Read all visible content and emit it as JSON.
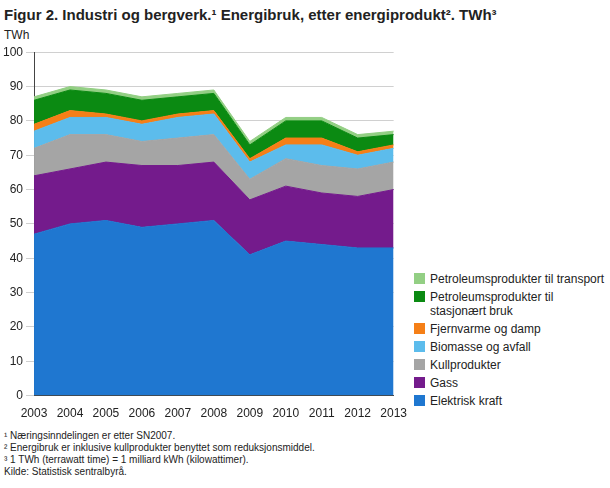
{
  "chart_data": {
    "type": "area",
    "stacked": true,
    "title": "Figur 2. Industri og bergverk.¹ Energibruk, etter energiprodukt². TWh³",
    "y_label": "TWh",
    "notes": [
      "¹ Næringsinndelingen er etter SN2007.",
      "² Energibruk er inklusive kullprodukter benyttet som reduksjonsmiddel.",
      "³ 1 TWh (terrawatt time) = 1 milliard kWh (kilowattimer).",
      "Kilde: Statistisk sentralbyrå."
    ],
    "categories": [
      "2003",
      "2004",
      "2005",
      "2006",
      "2007",
      "2008",
      "2009",
      "2010",
      "2011",
      "2012",
      "2013"
    ],
    "series": [
      {
        "name": "Elektrisk kraft",
        "color": "#1f77d0",
        "values": [
          47,
          50,
          51,
          49,
          50,
          51,
          41,
          45,
          44,
          43,
          43
        ]
      },
      {
        "name": "Gass",
        "color": "#741b8c",
        "values": [
          17,
          16,
          17,
          18,
          17,
          17,
          16,
          16,
          15,
          15,
          17
        ]
      },
      {
        "name": "Kullprodukter",
        "color": "#a5a5a5",
        "values": [
          8,
          10,
          8,
          7,
          8,
          8,
          6,
          8,
          8,
          8,
          8
        ]
      },
      {
        "name": "Biomasse og avfall",
        "color": "#5cbcec",
        "values": [
          5,
          5,
          5,
          5,
          6,
          6,
          5,
          4,
          6,
          4,
          4
        ]
      },
      {
        "name": "Fjernvarme og damp",
        "color": "#f57f17",
        "values": [
          2,
          2,
          1,
          1,
          1,
          1,
          1,
          2,
          2,
          1,
          1
        ]
      },
      {
        "name": "Petroleumsprodukter til stasjonært bruk",
        "color": "#0b8a12",
        "values": [
          7,
          6,
          6,
          6,
          5,
          5,
          4,
          5,
          5,
          4,
          3
        ]
      },
      {
        "name": "Petroleumsprodukter til transport",
        "color": "#93cf84",
        "values": [
          1,
          1,
          1,
          1,
          1,
          1,
          1,
          1,
          1,
          1,
          1
        ]
      }
    ],
    "ylim": [
      0,
      100
    ],
    "yticks": [
      0,
      10,
      20,
      30,
      40,
      50,
      60,
      70,
      80,
      90,
      100
    ],
    "grid": true,
    "legend": "right"
  }
}
